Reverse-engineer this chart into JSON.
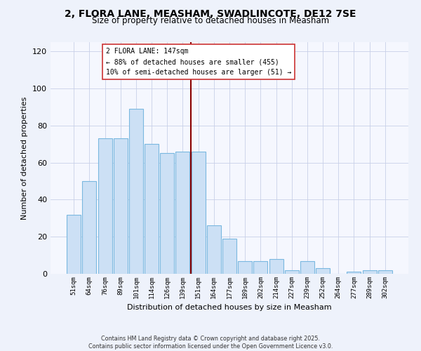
{
  "title_line1": "2, FLORA LANE, MEASHAM, SWADLINCOTE, DE12 7SE",
  "title_line2": "Size of property relative to detached houses in Measham",
  "xlabel": "Distribution of detached houses by size in Measham",
  "ylabel": "Number of detached properties",
  "bar_labels": [
    "51sqm",
    "64sqm",
    "76sqm",
    "89sqm",
    "101sqm",
    "114sqm",
    "126sqm",
    "139sqm",
    "151sqm",
    "164sqm",
    "177sqm",
    "189sqm",
    "202sqm",
    "214sqm",
    "227sqm",
    "239sqm",
    "252sqm",
    "264sqm",
    "277sqm",
    "289sqm",
    "302sqm"
  ],
  "bar_values": [
    32,
    50,
    73,
    73,
    89,
    70,
    65,
    66,
    66,
    26,
    19,
    7,
    7,
    8,
    2,
    7,
    3,
    0,
    1,
    2,
    2
  ],
  "bar_facecolor": "#cce0f5",
  "bar_edgecolor": "#7ab8e0",
  "ylim": [
    0,
    125
  ],
  "yticks": [
    0,
    20,
    40,
    60,
    80,
    100,
    120
  ],
  "vline_color": "#8b0000",
  "annotation_title": "2 FLORA LANE: 147sqm",
  "annotation_line2": "← 88% of detached houses are smaller (455)",
  "annotation_line3": "10% of semi-detached houses are larger (51) →",
  "footer_line1": "Contains HM Land Registry data © Crown copyright and database right 2025.",
  "footer_line2": "Contains public sector information licensed under the Open Government Licence v3.0.",
  "background_color": "#eef2fb",
  "plot_background_color": "#f5f7fe",
  "grid_color": "#c8d0e8"
}
